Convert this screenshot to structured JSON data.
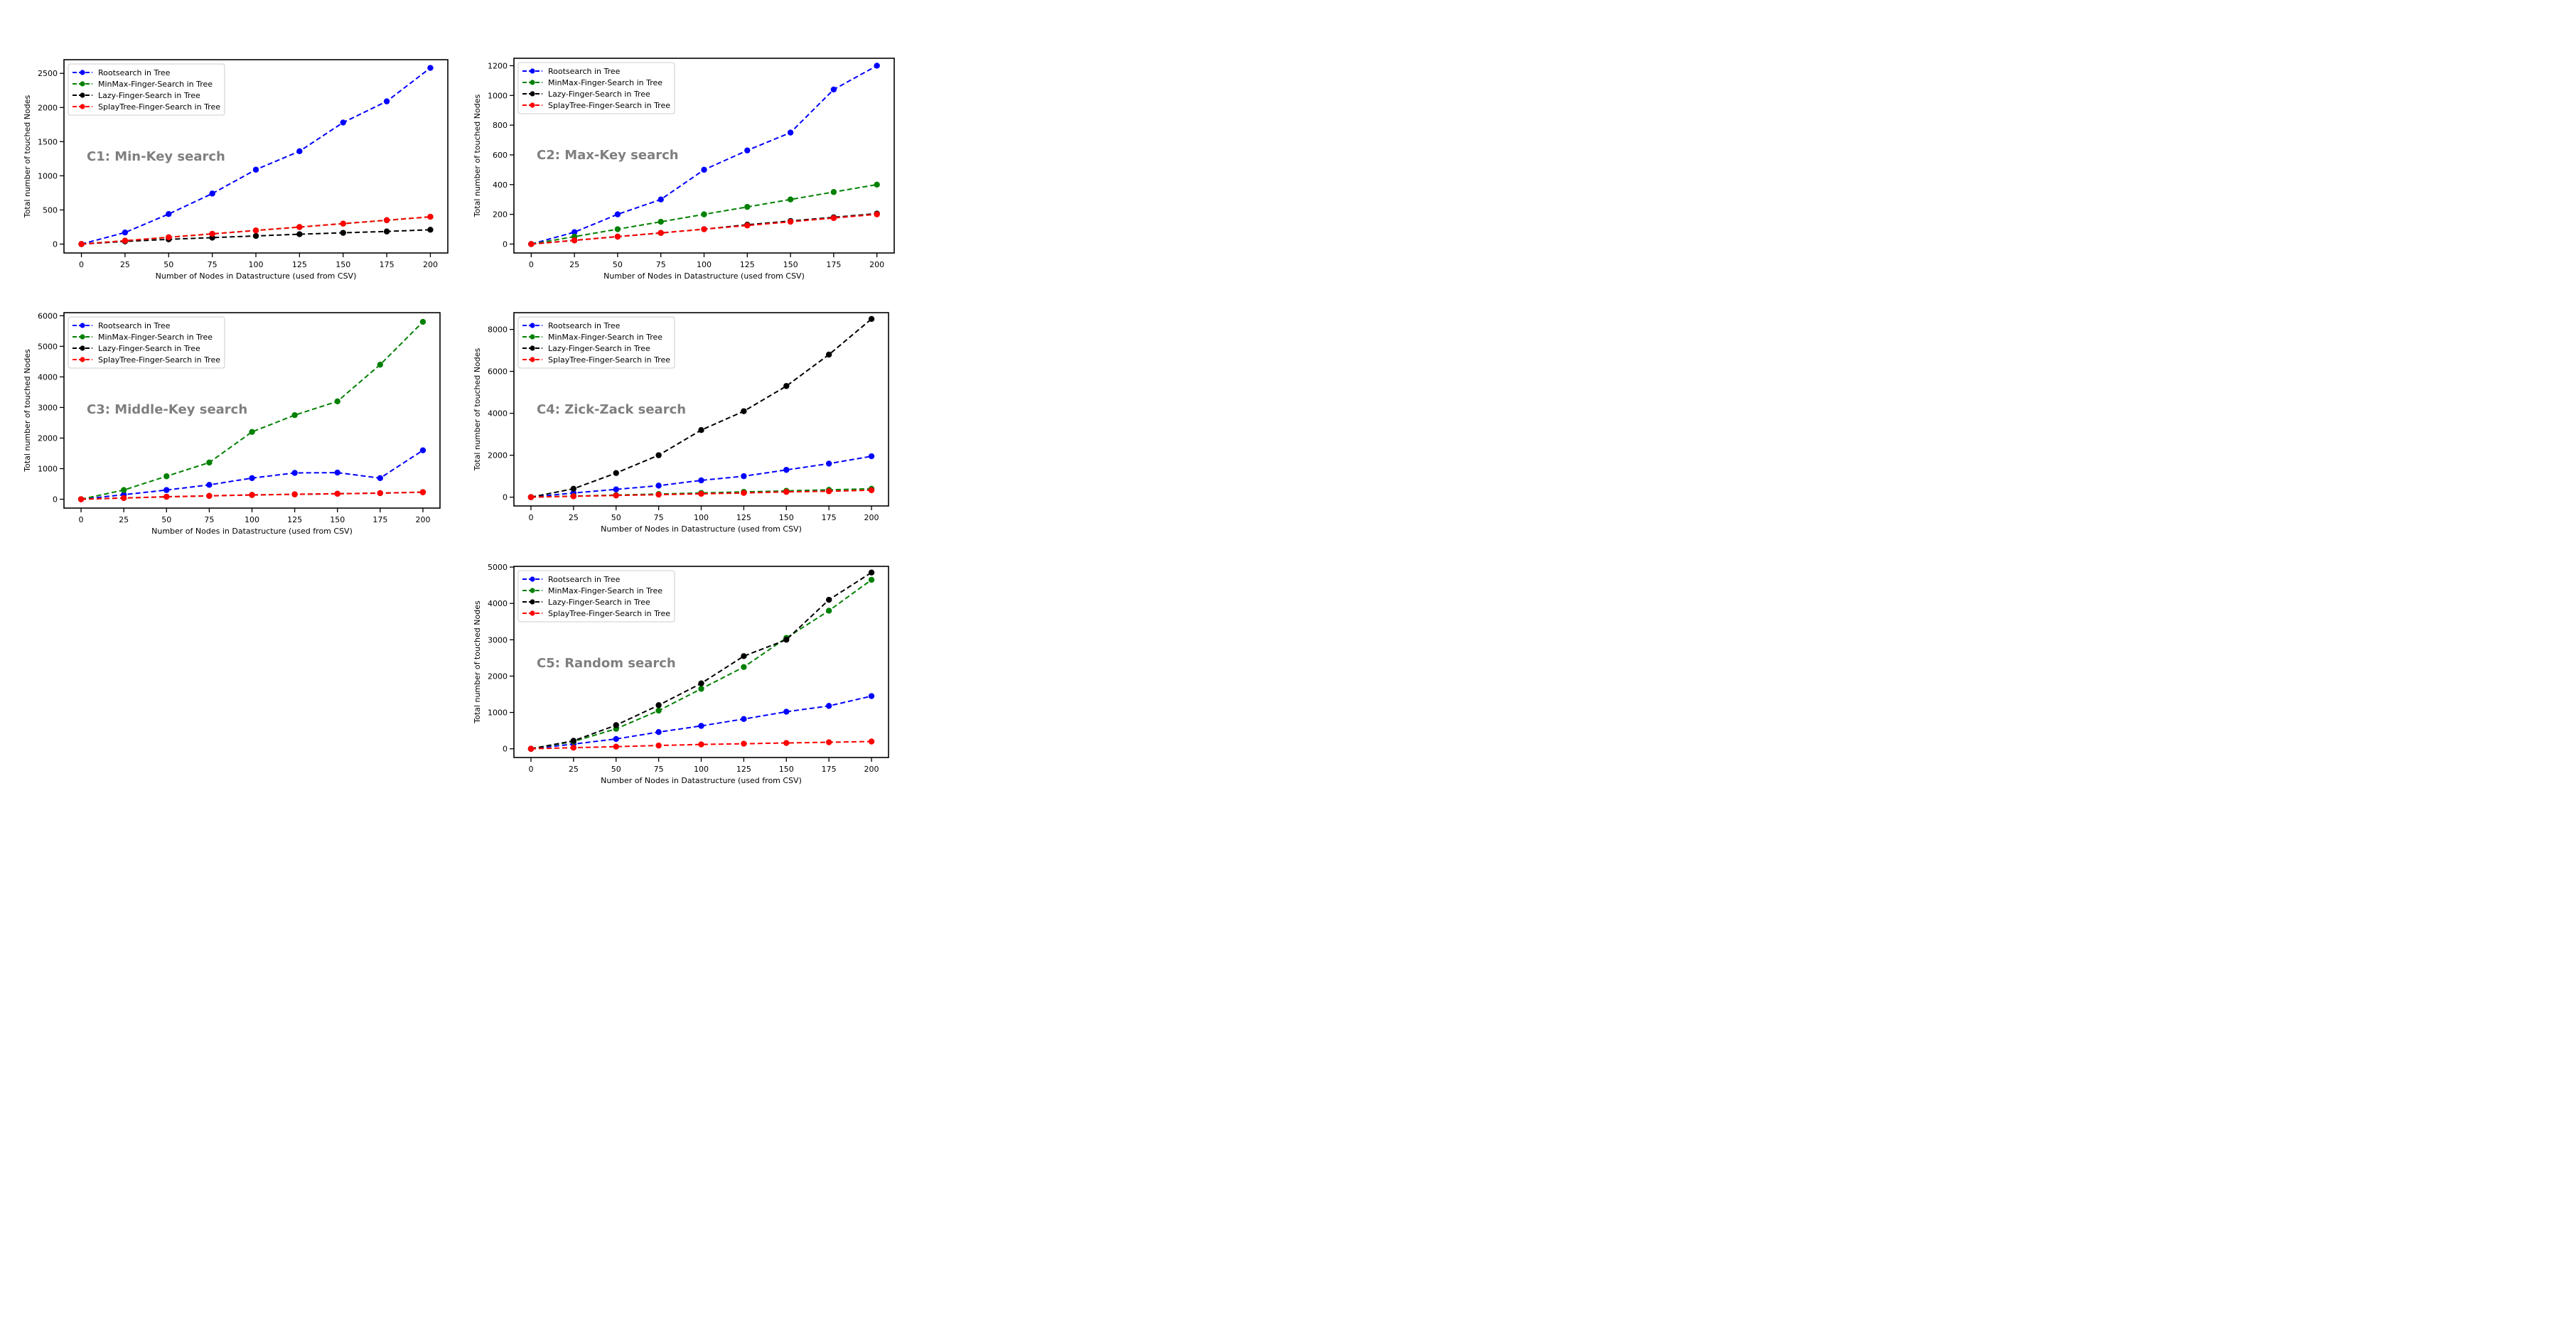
{
  "colors": {
    "Rootsearch in Tree": "#0000ff",
    "MinMax-Finger-Search in Tree": "#008000",
    "Lazy-Finger-Search in Tree": "#000000",
    "SplayTree-Finger-Search  in Tree": "#ff0000",
    "annotation": "#7f7f7f"
  },
  "chart_data": [
    {
      "type": "line",
      "annotation": "C1: Min-Key search",
      "xlabel": "Number of Nodes in Datastructure (used from CSV)",
      "ylabel": "Total number of touched Nodes",
      "x": [
        0,
        25,
        50,
        75,
        100,
        125,
        150,
        175,
        200
      ],
      "xticks": [
        0,
        25,
        50,
        75,
        100,
        125,
        150,
        175,
        200
      ],
      "yticks": [
        0,
        500,
        1000,
        1500,
        2000,
        2500
      ],
      "ylim": [
        -130,
        2700
      ],
      "legend": "top-left",
      "series": [
        {
          "name": "Rootsearch in Tree",
          "values": [
            0,
            170,
            440,
            740,
            1090,
            1360,
            1780,
            2090,
            2580
          ]
        },
        {
          "name": "MinMax-Finger-Search in Tree",
          "values": [
            0,
            50,
            100,
            150,
            200,
            250,
            300,
            350,
            400
          ]
        },
        {
          "name": "Lazy-Finger-Search in Tree",
          "values": [
            0,
            40,
            70,
            95,
            120,
            145,
            165,
            185,
            210
          ]
        },
        {
          "name": "SplayTree-Finger-Search  in Tree",
          "values": [
            0,
            50,
            100,
            150,
            200,
            250,
            300,
            350,
            400
          ]
        }
      ]
    },
    {
      "type": "line",
      "annotation": "C2: Max-Key search",
      "xlabel": "Number of Nodes in Datastructure (used from CSV)",
      "ylabel": "Total number of touched Nodes",
      "x": [
        0,
        25,
        50,
        75,
        100,
        125,
        150,
        175,
        200
      ],
      "xticks": [
        0,
        25,
        50,
        75,
        100,
        125,
        150,
        175,
        200
      ],
      "yticks": [
        0,
        200,
        400,
        600,
        800,
        1000,
        1200
      ],
      "ylim": [
        -60,
        1250
      ],
      "legend": "top-left",
      "series": [
        {
          "name": "Rootsearch in Tree",
          "values": [
            0,
            80,
            200,
            300,
            500,
            630,
            750,
            1040,
            1200
          ]
        },
        {
          "name": "MinMax-Finger-Search in Tree",
          "values": [
            0,
            50,
            100,
            150,
            200,
            250,
            300,
            350,
            400
          ]
        },
        {
          "name": "Lazy-Finger-Search in Tree",
          "values": [
            0,
            25,
            50,
            75,
            100,
            130,
            155,
            180,
            205
          ]
        },
        {
          "name": "SplayTree-Finger-Search  in Tree",
          "values": [
            0,
            25,
            50,
            75,
            100,
            125,
            150,
            175,
            200
          ]
        }
      ]
    },
    {
      "type": "line",
      "annotation": "C3: Middle-Key search",
      "xlabel": "Number of Nodes in Datastructure (used from CSV)",
      "ylabel": "Total number of touched Nodes",
      "x": [
        0,
        25,
        50,
        75,
        100,
        125,
        150,
        175,
        200
      ],
      "xticks": [
        0,
        25,
        50,
        75,
        100,
        125,
        150,
        175,
        200
      ],
      "yticks": [
        0,
        1000,
        2000,
        3000,
        4000,
        5000,
        6000
      ],
      "ylim": [
        -290,
        6100
      ],
      "legend": "top-left",
      "series": [
        {
          "name": "Rootsearch in Tree",
          "values": [
            0,
            150,
            300,
            470,
            690,
            860,
            870,
            690,
            1600
          ]
        },
        {
          "name": "MinMax-Finger-Search in Tree",
          "values": [
            0,
            300,
            750,
            1200,
            2200,
            2750,
            3200,
            4400,
            5800
          ]
        },
        {
          "name": "Lazy-Finger-Search in Tree",
          "values": [
            0,
            40,
            80,
            110,
            140,
            160,
            180,
            200,
            230
          ]
        },
        {
          "name": "SplayTree-Finger-Search  in Tree",
          "values": [
            0,
            40,
            80,
            110,
            140,
            160,
            180,
            200,
            230
          ]
        }
      ]
    },
    {
      "type": "line",
      "annotation": "C4: Zick-Zack search",
      "xlabel": "Number of Nodes in Datastructure (used from CSV)",
      "ylabel": "Total number of touched Nodes",
      "x": [
        0,
        25,
        50,
        75,
        100,
        125,
        150,
        175,
        200
      ],
      "xticks": [
        0,
        25,
        50,
        75,
        100,
        125,
        150,
        175,
        200
      ],
      "yticks": [
        0,
        2000,
        4000,
        6000,
        8000
      ],
      "ylim": [
        -420,
        8800
      ],
      "legend": "top-left",
      "series": [
        {
          "name": "Rootsearch in Tree",
          "values": [
            0,
            200,
            370,
            550,
            800,
            1000,
            1300,
            1600,
            1950
          ]
        },
        {
          "name": "MinMax-Finger-Search in Tree",
          "values": [
            0,
            50,
            100,
            150,
            200,
            250,
            300,
            350,
            400
          ]
        },
        {
          "name": "Lazy-Finger-Search in Tree",
          "values": [
            0,
            400,
            1150,
            2000,
            3200,
            4100,
            5300,
            6800,
            8500
          ]
        },
        {
          "name": "SplayTree-Finger-Search  in Tree",
          "values": [
            0,
            40,
            80,
            120,
            160,
            200,
            250,
            280,
            330
          ]
        }
      ]
    },
    {
      "type": "line",
      "annotation": "C5: Random search",
      "xlabel": "Number of Nodes in Datastructure (used from CSV)",
      "ylabel": "Total number of touched Nodes",
      "x": [
        0,
        25,
        50,
        75,
        100,
        125,
        150,
        175,
        200
      ],
      "xticks": [
        0,
        25,
        50,
        75,
        100,
        125,
        150,
        175,
        200
      ],
      "yticks": [
        0,
        1000,
        2000,
        3000,
        4000,
        5000
      ],
      "ylim": [
        -240,
        5020
      ],
      "legend": "top-left",
      "series": [
        {
          "name": "Rootsearch in Tree",
          "values": [
            0,
            130,
            270,
            460,
            630,
            820,
            1020,
            1180,
            1450
          ]
        },
        {
          "name": "MinMax-Finger-Search in Tree",
          "values": [
            0,
            200,
            550,
            1050,
            1650,
            2250,
            3050,
            3800,
            4650
          ]
        },
        {
          "name": "Lazy-Finger-Search in Tree",
          "values": [
            0,
            220,
            650,
            1200,
            1800,
            2550,
            3000,
            4100,
            4850
          ]
        },
        {
          "name": "SplayTree-Finger-Search  in Tree",
          "values": [
            0,
            30,
            60,
            90,
            120,
            140,
            160,
            180,
            200
          ]
        }
      ]
    }
  ]
}
